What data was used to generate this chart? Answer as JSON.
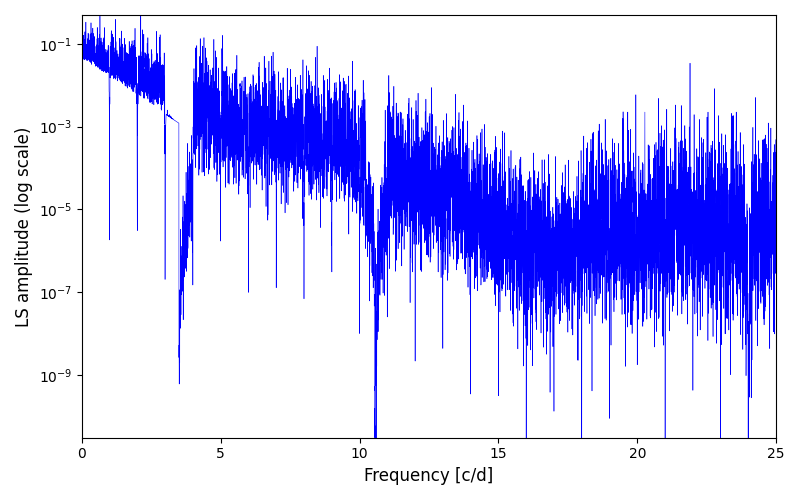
{
  "xlabel": "Frequency [c/d]",
  "ylabel": "LS amplitude (log scale)",
  "line_color": "#0000FF",
  "xlim": [
    0,
    25
  ],
  "ylim": [
    3e-11,
    0.5
  ],
  "xticks": [
    0,
    5,
    10,
    15,
    20,
    25
  ],
  "n_points": 8000,
  "seed": 123,
  "figsize": [
    8.0,
    5.0
  ],
  "dpi": 100,
  "bg_color": "#ffffff",
  "linewidth": 0.4
}
